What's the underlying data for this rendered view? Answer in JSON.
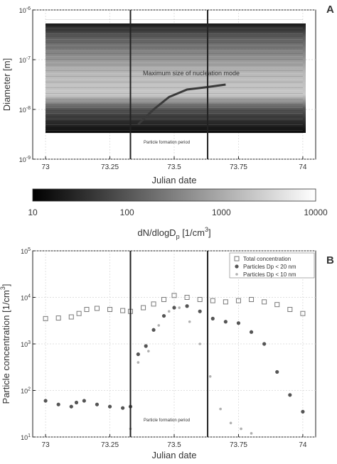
{
  "chart_data": [
    {
      "panel": "A",
      "type": "heatmap",
      "xlabel": "Julian date",
      "ylabel": "Diameter [m]",
      "xlim": [
        72.95,
        74.05
      ],
      "ylim_log10": [
        -9,
        -6
      ],
      "x_ticks": [
        73,
        73.25,
        73.5,
        73.75,
        74
      ],
      "x_tick_labels": [
        "73",
        "73.25",
        "73.5",
        "73.75",
        "74"
      ],
      "y_ticks_log10": [
        -9,
        -8,
        -7,
        -6
      ],
      "y_tick_labels": [
        {
          "base": "10",
          "exp": "-9"
        },
        {
          "base": "10",
          "exp": "-8"
        },
        {
          "base": "10",
          "exp": "-7"
        },
        {
          "base": "10",
          "exp": "-6"
        }
      ],
      "data_extent": {
        "x": [
          73.0,
          74.0
        ],
        "log10_diameter": [
          -8.55,
          -6.15
        ]
      },
      "vertical_lines_x": [
        73.33,
        73.63
      ],
      "annotations": [
        {
          "text": "Maximum size of nucleation mode",
          "x": 73.5,
          "log10_diameter": -7.45
        },
        {
          "text": "Particle formation period",
          "x": 73.41,
          "log10_diameter": -8.7
        }
      ],
      "nucleation_mode_max": [
        {
          "x": 73.36,
          "log10_diameter": -8.3
        },
        {
          "x": 73.42,
          "log10_diameter": -8.0
        },
        {
          "x": 73.48,
          "log10_diameter": -7.75
        },
        {
          "x": 73.55,
          "log10_diameter": -7.6
        },
        {
          "x": 73.63,
          "log10_diameter": -7.55
        },
        {
          "x": 73.7,
          "log10_diameter": -7.5
        }
      ]
    },
    {
      "panel": "colorbar",
      "type": "heatmap",
      "scale": "log",
      "range": [
        10,
        10000
      ],
      "tick_labels": [
        "10",
        "100",
        "1000",
        "10000"
      ],
      "label_main": "dN/dlogD",
      "label_sub": "p",
      "label_unit": " [1/cm",
      "label_unit_exp": "3",
      "label_unit_end": "]"
    },
    {
      "panel": "B",
      "type": "scatter",
      "xlabel": "Julian date",
      "ylabel": "Particle concentration [1/cm",
      "ylabel_exp": "3",
      "ylabel_end": "]",
      "xlim": [
        72.95,
        74.05
      ],
      "ylim_log10": [
        1,
        5
      ],
      "x_ticks": [
        73,
        73.25,
        73.5,
        73.75,
        74
      ],
      "x_tick_labels": [
        "73",
        "73.25",
        "73.5",
        "73.75",
        "74"
      ],
      "y_ticks_log10": [
        1,
        2,
        3,
        4,
        5
      ],
      "y_tick_labels": [
        {
          "base": "10",
          "exp": "1"
        },
        {
          "base": "10",
          "exp": "2"
        },
        {
          "base": "10",
          "exp": "3"
        },
        {
          "base": "10",
          "exp": "4"
        },
        {
          "base": "10",
          "exp": "5"
        }
      ],
      "vertical_lines_x": [
        73.33,
        73.63
      ],
      "annotations": [
        {
          "text": "Particle formation period",
          "x": 73.41,
          "log10_y": 1.95
        }
      ],
      "legend_position": "top-right",
      "series": [
        {
          "name": "Total concentration",
          "marker": "open-square",
          "points": [
            [
              73.0,
              3500
            ],
            [
              73.05,
              3600
            ],
            [
              73.1,
              3800
            ],
            [
              73.13,
              4500
            ],
            [
              73.16,
              5500
            ],
            [
              73.2,
              5800
            ],
            [
              73.25,
              5500
            ],
            [
              73.3,
              5200
            ],
            [
              73.33,
              5000
            ],
            [
              73.38,
              6000
            ],
            [
              73.42,
              7200
            ],
            [
              73.46,
              9000
            ],
            [
              73.5,
              11000
            ],
            [
              73.55,
              10000
            ],
            [
              73.6,
              9000
            ],
            [
              73.65,
              8500
            ],
            [
              73.7,
              8000
            ],
            [
              73.75,
              8500
            ],
            [
              73.8,
              9000
            ],
            [
              73.85,
              8000
            ],
            [
              73.9,
              7000
            ],
            [
              73.95,
              5500
            ],
            [
              74.0,
              4500
            ]
          ]
        },
        {
          "name": "Particles  Dp < 20 nm",
          "marker": "filled-circle",
          "points": [
            [
              73.0,
              60
            ],
            [
              73.05,
              50
            ],
            [
              73.1,
              45
            ],
            [
              73.12,
              55
            ],
            [
              73.15,
              60
            ],
            [
              73.2,
              50
            ],
            [
              73.25,
              45
            ],
            [
              73.3,
              42
            ],
            [
              73.33,
              45
            ],
            [
              73.36,
              600
            ],
            [
              73.39,
              900
            ],
            [
              73.42,
              2000
            ],
            [
              73.46,
              4000
            ],
            [
              73.5,
              6000
            ],
            [
              73.55,
              6500
            ],
            [
              73.6,
              5000
            ],
            [
              73.65,
              3500
            ],
            [
              73.7,
              3000
            ],
            [
              73.75,
              2800
            ],
            [
              73.8,
              1800
            ],
            [
              73.85,
              1000
            ],
            [
              73.9,
              250
            ],
            [
              73.95,
              80
            ],
            [
              74.0,
              35
            ]
          ]
        },
        {
          "name": "Particles  Dp < 10 nm",
          "marker": "dot",
          "points": [
            [
              73.33,
              15
            ],
            [
              73.36,
              400
            ],
            [
              73.4,
              700
            ],
            [
              73.44,
              2500
            ],
            [
              73.48,
              5000
            ],
            [
              73.52,
              6000
            ],
            [
              73.56,
              3000
            ],
            [
              73.6,
              1000
            ],
            [
              73.64,
              200
            ],
            [
              73.68,
              40
            ],
            [
              73.72,
              20
            ],
            [
              73.76,
              15
            ],
            [
              73.8,
              12
            ]
          ]
        }
      ]
    }
  ],
  "panel_labels": {
    "a": "A",
    "b": "B"
  }
}
